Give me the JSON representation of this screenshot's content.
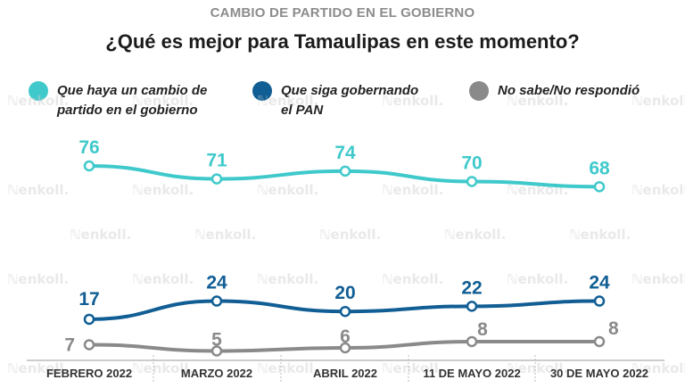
{
  "header": {
    "supertitle": "CAMBIO DE PARTIDO EN EL GOBIERNO",
    "title": "¿Qué es mejor para Tamaulipas en este momento?"
  },
  "watermark": "enkoll.",
  "colors": {
    "cambio": "#3fc9cb",
    "pan": "#115e94",
    "nosabe": "#8a8a8a",
    "axis": "#999999",
    "tick_text": "#333333"
  },
  "chart_data": {
    "type": "line",
    "categories": [
      "FEBRERO 2022",
      "MARZO 2022",
      "ABRIL 2022",
      "11 DE MAYO 2022",
      "30 DE MAYO 2022"
    ],
    "series": [
      {
        "key": "cambio",
        "name": "Que haya un cambio de\npartido en el gobierno",
        "values": [
          76,
          71,
          74,
          70,
          68
        ]
      },
      {
        "key": "pan",
        "name": "Que siga gobernando\nel PAN",
        "values": [
          17,
          24,
          20,
          22,
          24
        ]
      },
      {
        "key": "nosabe",
        "name": "No sabe/No respondió",
        "values": [
          7,
          5,
          6,
          8,
          8
        ]
      }
    ],
    "ylim": [
      0,
      80
    ],
    "grid": false,
    "legend_position": "top"
  }
}
